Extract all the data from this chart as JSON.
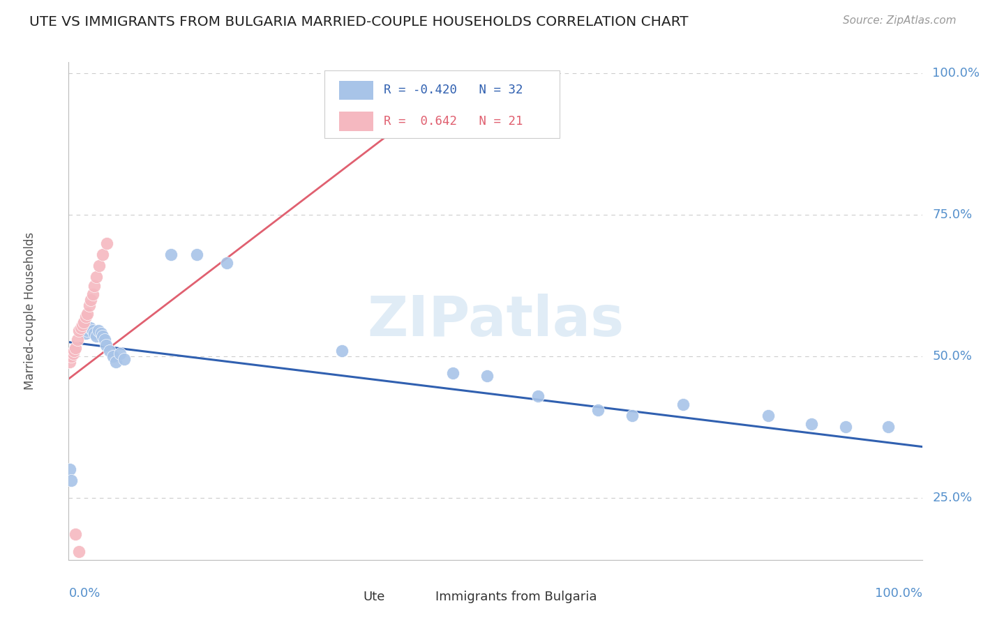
{
  "title": "UTE VS IMMIGRANTS FROM BULGARIA MARRIED-COUPLE HOUSEHOLDS CORRELATION CHART",
  "source": "Source: ZipAtlas.com",
  "ylabel": "Married-couple Households",
  "watermark": "ZIPatlas",
  "ute_color": "#a8c4e8",
  "ute_line_color": "#3060b0",
  "bulgaria_color": "#f5b8c0",
  "bulgaria_line_color": "#e06070",
  "background_color": "#ffffff",
  "grid_color": "#cccccc",
  "tick_label_color": "#5590cc",
  "title_color": "#222222",
  "ute_x": [
    0.001,
    0.003,
    0.02,
    0.022,
    0.025,
    0.028,
    0.03,
    0.032,
    0.035,
    0.038,
    0.04,
    0.042,
    0.044,
    0.048,
    0.052,
    0.055,
    0.06,
    0.065,
    0.12,
    0.15,
    0.185,
    0.32,
    0.45,
    0.49,
    0.55,
    0.62,
    0.66,
    0.72,
    0.82,
    0.87,
    0.91,
    0.96
  ],
  "ute_y": [
    0.3,
    0.28,
    0.54,
    0.545,
    0.55,
    0.545,
    0.54,
    0.535,
    0.545,
    0.54,
    0.535,
    0.53,
    0.52,
    0.51,
    0.5,
    0.49,
    0.505,
    0.495,
    0.68,
    0.68,
    0.665,
    0.51,
    0.47,
    0.465,
    0.43,
    0.405,
    0.395,
    0.415,
    0.395,
    0.38,
    0.375,
    0.375
  ],
  "bulgaria_x": [
    0.001,
    0.003,
    0.005,
    0.006,
    0.008,
    0.01,
    0.012,
    0.014,
    0.016,
    0.018,
    0.02,
    0.022,
    0.024,
    0.026,
    0.028,
    0.03,
    0.032,
    0.036,
    0.04,
    0.045,
    0.055
  ],
  "bulgaria_y": [
    0.49,
    0.5,
    0.505,
    0.51,
    0.515,
    0.53,
    0.545,
    0.55,
    0.555,
    0.56,
    0.57,
    0.575,
    0.59,
    0.6,
    0.61,
    0.625,
    0.64,
    0.66,
    0.68,
    0.7,
    0.16
  ],
  "xlim": [
    0.0,
    1.0
  ],
  "ylim": [
    0.14,
    1.02
  ],
  "ute_line_x0": 0.0,
  "ute_line_y0": 0.525,
  "ute_line_x1": 1.0,
  "ute_line_y1": 0.34,
  "bul_line_x0": 0.0,
  "bul_line_y0": 0.46,
  "bul_line_x1": 0.46,
  "bul_line_y1": 0.99
}
